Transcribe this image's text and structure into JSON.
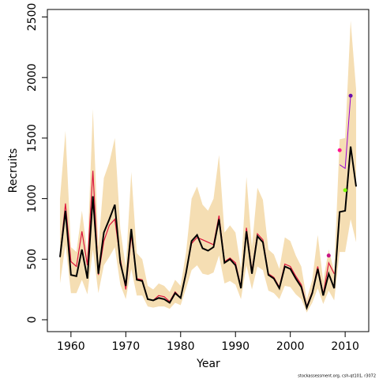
{
  "chart_data": {
    "type": "line",
    "x_label": "Year",
    "y_label": "Recruits",
    "footnote": "stockassessment.org, csh-qt101, r3072",
    "x": [
      1958,
      1959,
      1960,
      1961,
      1962,
      1963,
      1964,
      1965,
      1966,
      1967,
      1968,
      1969,
      1970,
      1971,
      1972,
      1973,
      1974,
      1975,
      1976,
      1977,
      1978,
      1979,
      1980,
      1981,
      1982,
      1983,
      1984,
      1985,
      1986,
      1987,
      1988,
      1989,
      1990,
      1991,
      1992,
      1993,
      1994,
      1995,
      1996,
      1997,
      1998,
      1999,
      2000,
      2001,
      2002,
      2003,
      2004,
      2005,
      2006,
      2007,
      2008,
      2009,
      2010,
      2011,
      2012
    ],
    "band": {
      "color": "#f5deb3",
      "upper": [
        1000,
        1560,
        600,
        560,
        900,
        550,
        1740,
        600,
        1170,
        1300,
        1500,
        750,
        430,
        1220,
        550,
        500,
        280,
        250,
        300,
        280,
        230,
        330,
        280,
        560,
        1000,
        1100,
        950,
        900,
        1000,
        1360,
        720,
        780,
        720,
        420,
        1180,
        600,
        1090,
        990,
        580,
        540,
        420,
        680,
        650,
        530,
        440,
        170,
        330,
        700,
        320,
        580,
        400,
        1490,
        1500,
        2470,
        1900
      ],
      "lower": [
        300,
        620,
        220,
        220,
        330,
        210,
        580,
        220,
        450,
        520,
        600,
        290,
        170,
        420,
        200,
        200,
        110,
        100,
        110,
        110,
        90,
        140,
        120,
        260,
        410,
        450,
        380,
        370,
        390,
        530,
        300,
        320,
        290,
        170,
        450,
        250,
        440,
        410,
        240,
        220,
        170,
        280,
        270,
        210,
        170,
        60,
        140,
        260,
        130,
        240,
        160,
        560,
        560,
        830,
        640
      ]
    },
    "series": [
      {
        "color": "#dc143c",
        "width": 1.2,
        "values": [
          520,
          960,
          480,
          440,
          730,
          450,
          1230,
          370,
          650,
          780,
          830,
          500,
          250,
          700,
          340,
          330,
          170,
          160,
          200,
          190,
          150,
          230,
          180,
          400,
          630,
          680,
          660,
          640,
          620,
          860,
          480,
          510,
          470,
          270,
          760,
          400,
          710,
          660,
          380,
          350,
          270,
          460,
          440,
          360,
          290,
          110,
          230,
          440,
          210,
          470,
          380,
          null,
          null,
          null,
          null
        ]
      },
      {
        "color": "#000000",
        "width": 2,
        "values": [
          517,
          900,
          370,
          360,
          580,
          340,
          1020,
          380,
          720,
          830,
          950,
          470,
          280,
          750,
          330,
          320,
          170,
          160,
          180,
          170,
          140,
          220,
          180,
          390,
          650,
          700,
          590,
          570,
          600,
          830,
          470,
          500,
          450,
          260,
          730,
          380,
          690,
          640,
          370,
          340,
          260,
          440,
          420,
          340,
          270,
          100,
          220,
          420,
          200,
          380,
          260,
          890,
          900,
          1430,
          1100
        ]
      },
      {
        "color": "#9400d3",
        "width": 1,
        "values": [
          null,
          null,
          null,
          null,
          null,
          null,
          null,
          null,
          null,
          null,
          null,
          null,
          null,
          null,
          null,
          null,
          null,
          null,
          null,
          null,
          null,
          null,
          null,
          null,
          null,
          null,
          null,
          null,
          null,
          null,
          null,
          null,
          null,
          null,
          null,
          null,
          null,
          null,
          null,
          null,
          null,
          null,
          null,
          null,
          null,
          null,
          null,
          null,
          null,
          null,
          null,
          1280,
          1250,
          1850,
          null
        ]
      }
    ],
    "points": [
      {
        "x": 2007,
        "y": 530,
        "color": "#c71585"
      },
      {
        "x": 2009,
        "y": 1400,
        "color": "#ff1493"
      },
      {
        "x": 2010,
        "y": 1070,
        "color": "#7cfc00"
      },
      {
        "x": 2011,
        "y": 1850,
        "color": "#6a0dad"
      }
    ],
    "xlim": [
      1955.7,
      2014.3
    ],
    "ylim": [
      -98,
      2562
    ],
    "xticks": [
      1960,
      1970,
      1980,
      1990,
      2000,
      2010
    ],
    "yticks": [
      0,
      500,
      1000,
      1500,
      2000,
      2500
    ]
  }
}
